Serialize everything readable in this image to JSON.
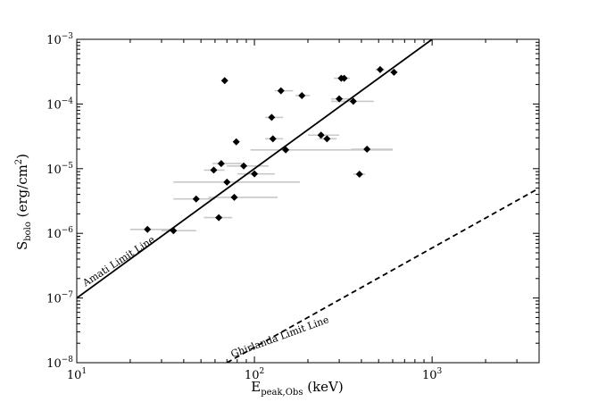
{
  "chart_data": {
    "type": "scatter",
    "xscale": "log",
    "yscale": "log",
    "xlim": [
      10,
      4000
    ],
    "ylim": [
      1e-08,
      0.001
    ],
    "grid": false,
    "xlabel": {
      "main": "E",
      "sub": "peak,Obs",
      "rest": " (keV)"
    },
    "ylabel": {
      "main": "S",
      "sub": "bolo",
      "rest1": " (erg/cm",
      "sup": "2",
      "rest2": ")"
    },
    "x_ticks": [
      {
        "value": 10,
        "base": "10",
        "exp": "1"
      },
      {
        "value": 100,
        "base": "10",
        "exp": "2"
      },
      {
        "value": 1000,
        "base": "10",
        "exp": "3"
      }
    ],
    "y_ticks": [
      {
        "value": 1e-08,
        "base": "10",
        "exp": "−8"
      },
      {
        "value": 1e-07,
        "base": "10",
        "exp": "−7"
      },
      {
        "value": 1e-06,
        "base": "10",
        "exp": "−6"
      },
      {
        "value": 1e-05,
        "base": "10",
        "exp": "−5"
      },
      {
        "value": 0.0001,
        "base": "10",
        "exp": "−4"
      },
      {
        "value": 0.001,
        "base": "10",
        "exp": "−3"
      }
    ],
    "lines": [
      {
        "name": "Amati Limit Line",
        "style": "solid",
        "points": [
          [
            10,
            1e-07
          ],
          [
            1000,
            0.001
          ]
        ]
      },
      {
        "name": "Ghirlanda Limit Line",
        "style": "dashed",
        "points": [
          [
            70,
            1e-08
          ],
          [
            4000,
            5e-06
          ]
        ]
      }
    ],
    "annotations": [
      {
        "text": "Amati Limit Line",
        "x": 11.2,
        "y": 1.5e-07,
        "rotate": -33
      },
      {
        "text": "Ghirlanda Limit Line",
        "x": 75,
        "y": 1.2e-08,
        "rotate": -20
      }
    ],
    "points": [
      {
        "x": 25,
        "y": 1.15e-06,
        "xerr": [
          20,
          35
        ]
      },
      {
        "x": 35,
        "y": 1.1e-06,
        "xerr": [
          30,
          47
        ]
      },
      {
        "x": 47,
        "y": 3.4e-06,
        "xerr": [
          35,
          60
        ]
      },
      {
        "x": 59,
        "y": 9.5e-06,
        "xerr": [
          52,
          68
        ]
      },
      {
        "x": 63,
        "y": 1.75e-06,
        "xerr": [
          52,
          75
        ]
      },
      {
        "x": 65,
        "y": 1.2e-05,
        "xerr": [
          58,
          85
        ]
      },
      {
        "x": 68,
        "y": 0.00023
      },
      {
        "x": 70,
        "y": 6.2e-06,
        "xerr": [
          35,
          180
        ]
      },
      {
        "x": 77,
        "y": 3.6e-06,
        "xerr": [
          55,
          135
        ]
      },
      {
        "x": 79,
        "y": 2.6e-05
      },
      {
        "x": 87,
        "y": 1.1e-05,
        "xerr": [
          70,
          120
        ]
      },
      {
        "x": 100,
        "y": 8.3e-06,
        "xerr": [
          80,
          130
        ]
      },
      {
        "x": 125,
        "y": 6.2e-05,
        "xerr": [
          115,
          145
        ]
      },
      {
        "x": 127,
        "y": 2.9e-05,
        "xerr": [
          115,
          145
        ]
      },
      {
        "x": 141,
        "y": 0.00016,
        "xerr": [
          130,
          165
        ]
      },
      {
        "x": 150,
        "y": 1.95e-05,
        "xerr": [
          95,
          600
        ]
      },
      {
        "x": 185,
        "y": 0.000135,
        "xerr": [
          170,
          205
        ]
      },
      {
        "x": 237,
        "y": 3.3e-05,
        "xerr": [
          200,
          300
        ]
      },
      {
        "x": 256,
        "y": 2.9e-05,
        "xerr": [
          230,
          290
        ]
      },
      {
        "x": 300,
        "y": 0.00012,
        "xerr": [
          270,
          340
        ]
      },
      {
        "x": 308,
        "y": 0.00025,
        "xerr": [
          280,
          330
        ]
      },
      {
        "x": 320,
        "y": 0.00025,
        "xerr": [
          290,
          345
        ]
      },
      {
        "x": 360,
        "y": 0.00011,
        "xerr": [
          270,
          470
        ]
      },
      {
        "x": 390,
        "y": 8.2e-06,
        "xerr": [
          360,
          420
        ]
      },
      {
        "x": 430,
        "y": 2e-05,
        "xerr": [
          350,
          600
        ]
      },
      {
        "x": 510,
        "y": 0.00034,
        "xerr": [
          480,
          540
        ]
      },
      {
        "x": 610,
        "y": 0.00031,
        "xerr": [
          580,
          640
        ]
      }
    ]
  }
}
